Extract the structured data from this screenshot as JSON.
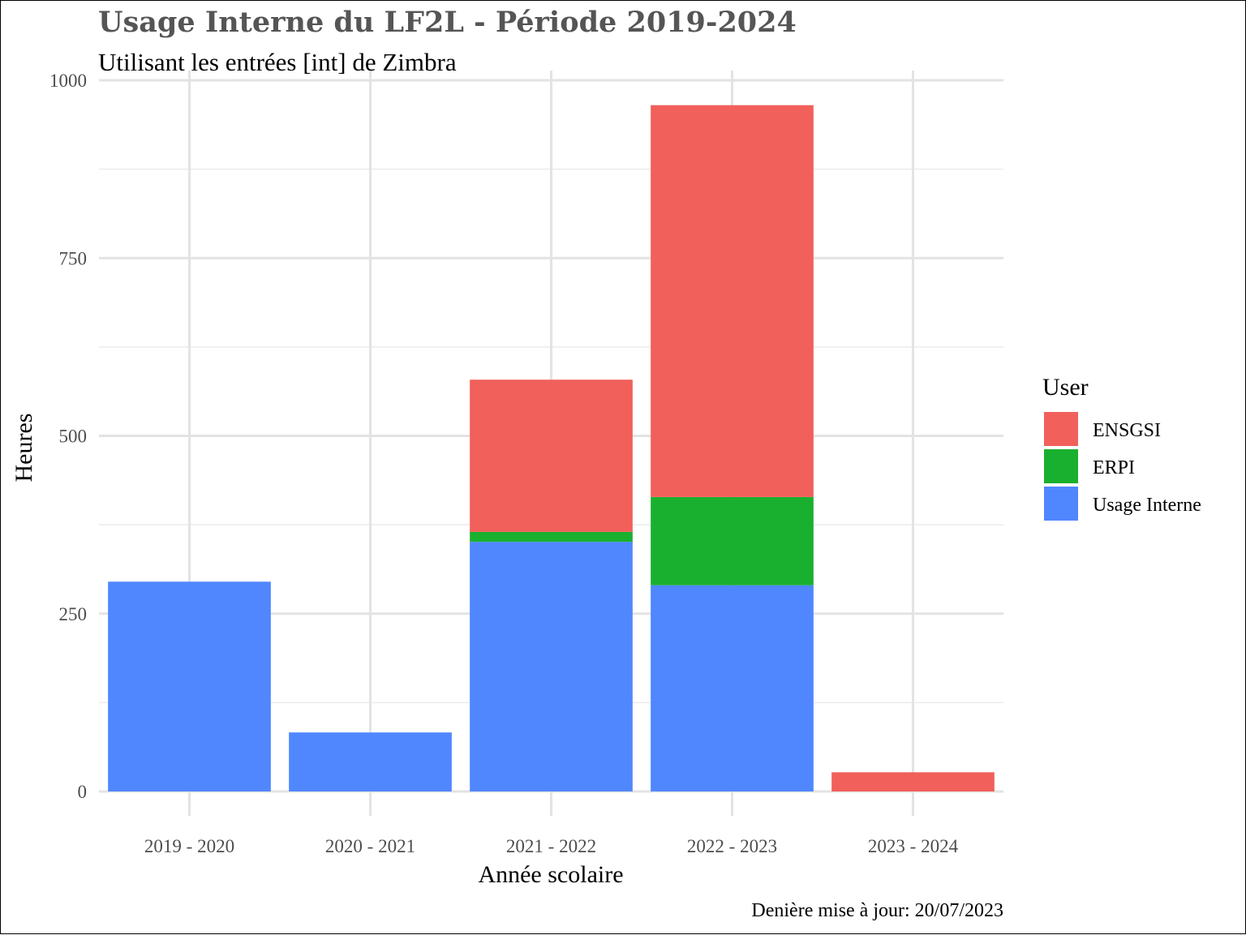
{
  "chart_data": {
    "type": "bar",
    "stacked": true,
    "title": "Usage Interne du LF2L - Période 2019-2024",
    "subtitle": "Utilisant les entrées [int] de Zimbra",
    "xlabel": "Année scolaire",
    "ylabel": "Heures",
    "caption": "Denière mise à jour: 20/07/2023",
    "categories": [
      "2019 - 2020",
      "2020 - 2021",
      "2021 - 2022",
      "2022 - 2023",
      "2023 - 2024"
    ],
    "ylim": [
      0,
      1000
    ],
    "yticks": [
      0,
      250,
      500,
      750,
      1000
    ],
    "yticks_labels": [
      "0",
      "250",
      "500",
      "750",
      "1000"
    ],
    "grid": true,
    "legend": {
      "title": "User",
      "position": "right"
    },
    "series": [
      {
        "name": "Usage Interne",
        "color": "#5087FF",
        "values": [
          295,
          83,
          351,
          290,
          0
        ]
      },
      {
        "name": "ERPI",
        "color": "#1AB02F",
        "values": [
          0,
          0,
          14,
          124,
          0
        ]
      },
      {
        "name": "ENSGSI",
        "color": "#F1605B",
        "values": [
          0,
          0,
          214,
          551,
          27
        ]
      }
    ],
    "legend_order": [
      "ENSGSI",
      "ERPI",
      "Usage Interne"
    ]
  }
}
